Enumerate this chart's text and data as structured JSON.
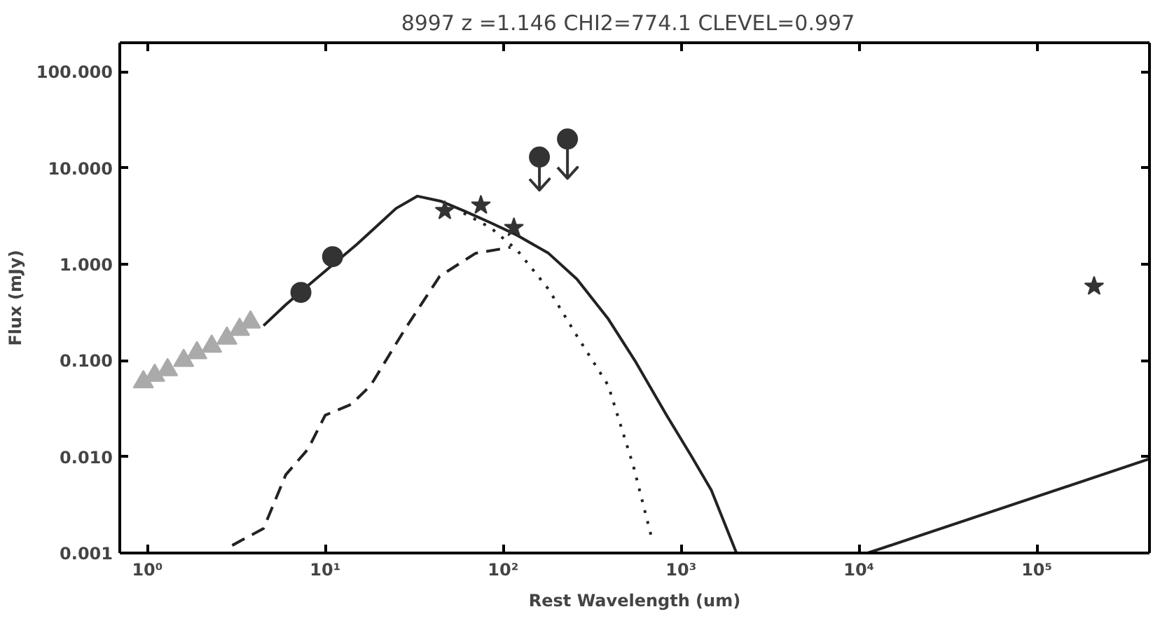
{
  "chart_data": {
    "type": "scatter",
    "title": "8997 z =1.146 CHI2=774.1   CLEVEL=0.997",
    "xlabel": "Rest Wavelength (um)",
    "ylabel": "Flux (mJy)",
    "log": "xy",
    "grid": false,
    "xlim": [
      0.7,
      430000
    ],
    "ylim": [
      0.001,
      200
    ],
    "xticks": [
      {
        "value": 1,
        "label": "10⁰"
      },
      {
        "value": 10,
        "label": "10¹"
      },
      {
        "value": 100,
        "label": "10²"
      },
      {
        "value": 1000,
        "label": "10³"
      },
      {
        "value": 10000,
        "label": "10⁴"
      },
      {
        "value": 100000,
        "label": "10⁵"
      }
    ],
    "yticks": [
      {
        "value": 0.001,
        "label": "0.001"
      },
      {
        "value": 0.01,
        "label": "0.010"
      },
      {
        "value": 0.1,
        "label": "0.100"
      },
      {
        "value": 1,
        "label": "1.000"
      },
      {
        "value": 10,
        "label": "10.000"
      },
      {
        "value": 100,
        "label": "100.000"
      }
    ],
    "series": [
      {
        "type": "line",
        "line_style": "solid",
        "color": "#222222",
        "x": [
          4.5,
          6,
          8,
          10,
          15,
          20,
          25,
          33,
          45,
          60,
          85,
          120,
          180,
          260,
          390,
          550,
          830,
          1150,
          1480,
          2050
        ],
        "values": [
          0.23,
          0.38,
          0.6,
          0.85,
          1.6,
          2.6,
          3.8,
          5.1,
          4.5,
          3.6,
          2.7,
          2.0,
          1.3,
          0.7,
          0.27,
          0.1,
          0.027,
          0.01,
          0.0045,
          0.001
        ]
      },
      {
        "type": "line",
        "line_style": "solid",
        "color": "#222222",
        "x": [
          11200,
          430000
        ],
        "values": [
          0.001,
          0.0095
        ]
      },
      {
        "type": "line",
        "line_style": "dotted",
        "color": "#222222",
        "x": [
          60,
          85,
          120,
          180,
          260,
          390,
          540,
          680
        ],
        "values": [
          3.4,
          2.4,
          1.4,
          0.55,
          0.18,
          0.055,
          0.008,
          0.0015
        ]
      },
      {
        "type": "line",
        "line_style": "dashed",
        "color": "#222222",
        "x": [
          3,
          4.5,
          6,
          8,
          10,
          14,
          18,
          28,
          44,
          70,
          110
        ],
        "values": [
          0.0012,
          0.0018,
          0.0065,
          0.012,
          0.027,
          0.035,
          0.055,
          0.21,
          0.75,
          1.3,
          1.5
        ]
      },
      {
        "marker": "triangle",
        "color": "#aaaaaa",
        "x": [
          0.95,
          1.1,
          1.3,
          1.6,
          1.9,
          2.3,
          2.8,
          3.3,
          3.8
        ],
        "values": [
          0.06,
          0.07,
          0.08,
          0.1,
          0.12,
          0.14,
          0.17,
          0.21,
          0.25
        ]
      },
      {
        "marker": "circle",
        "color": "#333333",
        "x": [
          7.3,
          11
        ],
        "values": [
          0.51,
          1.2
        ]
      },
      {
        "marker": "star",
        "color": "#333333",
        "x": [
          47,
          75,
          115,
          210000
        ],
        "values": [
          3.6,
          4.1,
          2.4,
          0.59
        ]
      },
      {
        "marker": "circle",
        "color": "#333333",
        "x": [
          160,
          230
        ],
        "values": [
          13,
          20
        ],
        "errors": [
          [
            5.9,
            13
          ],
          [
            7.8,
            20
          ]
        ]
      }
    ]
  }
}
